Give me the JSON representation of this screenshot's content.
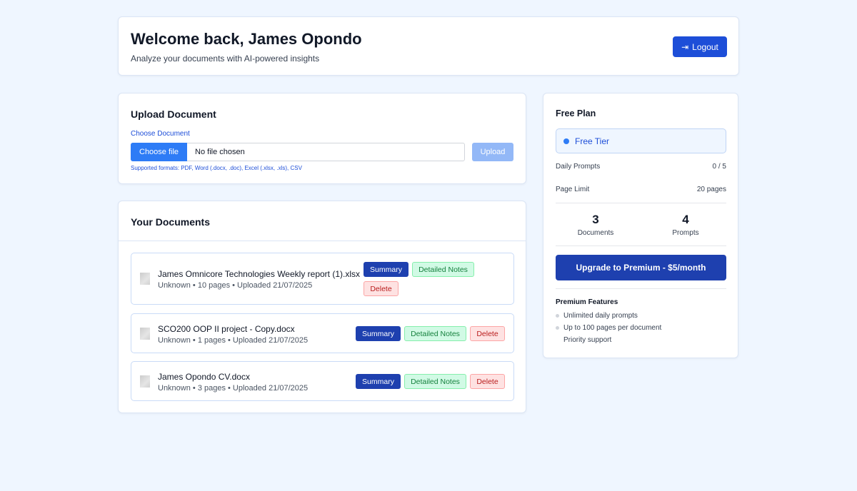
{
  "header": {
    "title": "Welcome back, James Opondo",
    "subtitle": "Analyze your documents with AI-powered insights",
    "logout_label": "Logout"
  },
  "upload": {
    "title": "Upload Document",
    "choose_label": "Choose Document",
    "choose_button": "Choose file",
    "file_status": "No file chosen",
    "upload_button": "Upload",
    "formats": "Supported formats: PDF, Word (.docx, .doc), Excel (.xlsx, .xls), CSV"
  },
  "documents": {
    "title": "Your Documents",
    "items": [
      {
        "name": "James Omnicore Technologies Weekly report (1).xlsx",
        "meta": "Unknown • 10 pages • Uploaded 21/07/2025"
      },
      {
        "name": "SCO200 OOP II project - Copy.docx",
        "meta": "Unknown • 1 pages • Uploaded 21/07/2025"
      },
      {
        "name": "James Opondo CV.docx",
        "meta": "Unknown • 3 pages • Uploaded 21/07/2025"
      }
    ],
    "summary_label": "Summary",
    "notes_label": "Detailed Notes",
    "delete_label": "Delete"
  },
  "plan": {
    "title": "Free Plan",
    "tier": "Free Tier",
    "daily_prompts_label": "Daily Prompts",
    "daily_prompts_value": "0 / 5",
    "page_limit_label": "Page Limit",
    "page_limit_value": "20 pages",
    "documents_count": "3",
    "documents_label": "Documents",
    "prompts_count": "4",
    "prompts_label": "Prompts",
    "upgrade_label": "Upgrade to Premium - $5/month",
    "features_title": "Premium Features",
    "features": [
      "Unlimited daily prompts",
      "Up to 100 pages per document",
      "Priority support"
    ]
  }
}
